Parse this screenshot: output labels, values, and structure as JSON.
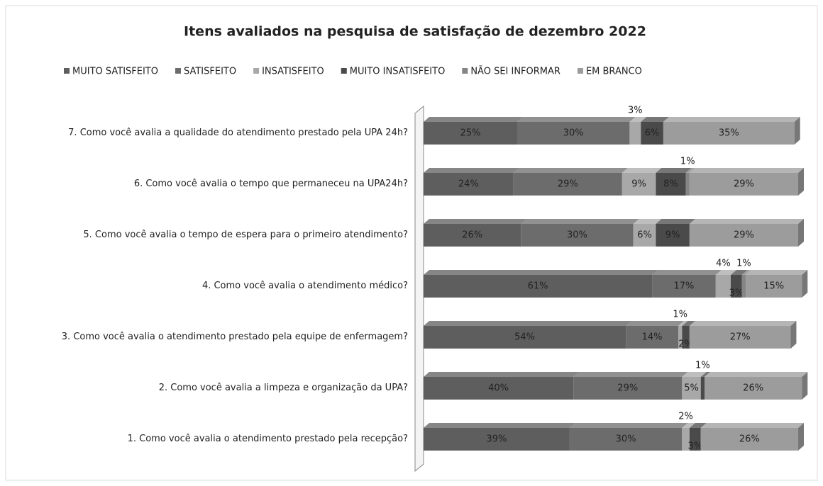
{
  "chart_data": {
    "type": "stacked_bar_horizontal",
    "title": "Itens avaliados na pesquisa de satisfação de dezembro 2022",
    "categories": [
      "7. Como você avalia a qualidade do atendimento prestado pela UPA 24h?",
      "6. Como você avalia o tempo que permaneceu na UPA24h?",
      "5. Como você avalia o tempo de espera para o primeiro atendimento?",
      "4. Como você avalia o atendimento médico?",
      "3. Como você avalia o atendimento prestado pela equipe de enfermagem?",
      "2. Como você avalia a limpeza e organização da UPA?",
      "1. Como você avalia o atendimento prestado pela recepção?"
    ],
    "xlim": [
      0,
      100
    ],
    "legend": "top",
    "series": [
      {
        "name": "MUITO SATISFEITO",
        "color": "#5e5e5e",
        "values": [
          25,
          24,
          26,
          61,
          54,
          40,
          39
        ],
        "value_labels": [
          "25%",
          "24%",
          "26%",
          "61%",
          "54%",
          "40%",
          "39%"
        ]
      },
      {
        "name": "SATISFEITO",
        "color": "#6c6c6c",
        "values": [
          30,
          29,
          30,
          17,
          14,
          29,
          30
        ],
        "value_labels": [
          "30%",
          "29%",
          "30%",
          "17%",
          "14%",
          "29%",
          "30%"
        ]
      },
      {
        "name": "INSATISFEITO",
        "color": "#a8a8a8",
        "values": [
          3,
          9,
          6,
          4,
          1,
          5,
          2
        ],
        "value_labels": [
          "3%",
          "9%",
          "6%",
          "4%",
          "1%",
          "5%",
          "2%"
        ]
      },
      {
        "name": "MUITO INSATISFEITO",
        "color": "#4a4a4a",
        "values": [
          6,
          8,
          9,
          3,
          2,
          1,
          3
        ],
        "value_labels": [
          "6%",
          "8%",
          "9%",
          "3%",
          "2%",
          "1%",
          "3%"
        ]
      },
      {
        "name": "NÃO SEI INFORMAR",
        "color": "#858585",
        "values": [
          null,
          1,
          null,
          1,
          null,
          null,
          null
        ],
        "value_labels": [
          null,
          "1%",
          null,
          "1%",
          null,
          null,
          null
        ]
      },
      {
        "name": "EM BRANCO",
        "color": "#9c9c9c",
        "values": [
          35,
          29,
          29,
          15,
          27,
          26,
          26
        ],
        "value_labels": [
          "35%",
          "29%",
          "29%",
          "15%",
          "27%",
          "26%",
          "26%"
        ]
      }
    ]
  }
}
